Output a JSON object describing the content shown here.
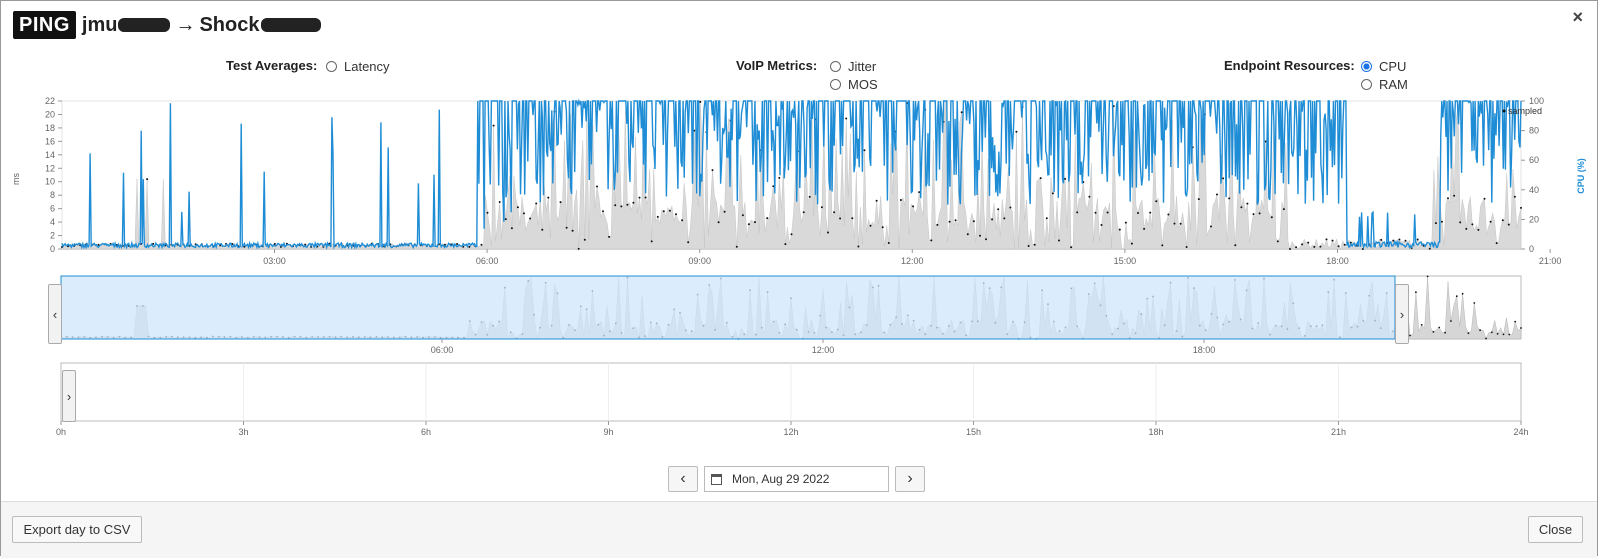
{
  "header": {
    "badge": "PING",
    "src_visible": "jmu",
    "arrow": "→",
    "dst_visible": "Shock",
    "close_glyph": "×"
  },
  "controls": {
    "test_averages": {
      "label": "Test Averages:",
      "options": [
        {
          "label": "Latency",
          "selected": false
        }
      ]
    },
    "voip_metrics": {
      "label": "VoIP Metrics:",
      "options": [
        {
          "label": "Jitter",
          "selected": false
        },
        {
          "label": "MOS",
          "selected": false
        }
      ]
    },
    "endpoint_resources": {
      "label": "Endpoint Resources:",
      "options": [
        {
          "label": "CPU",
          "selected": true
        },
        {
          "label": "RAM",
          "selected": false
        }
      ]
    }
  },
  "main_chart": {
    "y_left_label": "ms",
    "y_left_ticks": [
      "0",
      "2",
      "4",
      "6",
      "8",
      "10",
      "12",
      "14",
      "16",
      "18",
      "20",
      "22"
    ],
    "y_right_label": "CPU (%)",
    "y_right_ticks": [
      "0",
      "20",
      "40",
      "60",
      "80",
      "100"
    ],
    "x_ticks": [
      "03:00",
      "06:00",
      "09:00",
      "12:00",
      "15:00",
      "18:00",
      "21:00"
    ],
    "legend": "sampled"
  },
  "overview": {
    "x_ticks": [
      "06:00",
      "12:00",
      "18:00"
    ],
    "left_handle": "‹",
    "right_handle": "›"
  },
  "day_range": {
    "x_ticks": [
      "0h",
      "3h",
      "6h",
      "9h",
      "12h",
      "15h",
      "18h",
      "21h",
      "24h"
    ],
    "handle": "›"
  },
  "date_nav": {
    "prev": "‹",
    "next": "›",
    "date": "Mon, Aug 29 2022"
  },
  "footer": {
    "export_label": "Export day to CSV",
    "close_label": "Close"
  },
  "colors": {
    "cpu": "#1f8dd6",
    "latency_fill": "#d9d9d9",
    "selection": "#cfe5fb",
    "accent": "#1a73e8"
  },
  "chart_data": {
    "type": "line",
    "series": [
      {
        "name": "CPU (%)",
        "axis": "right"
      },
      {
        "name": "sampled",
        "axis": "left"
      }
    ],
    "x_range": [
      "00:00",
      "21:00"
    ],
    "y_left_range": [
      0,
      22
    ],
    "y_right_range": [
      0,
      100
    ]
  }
}
